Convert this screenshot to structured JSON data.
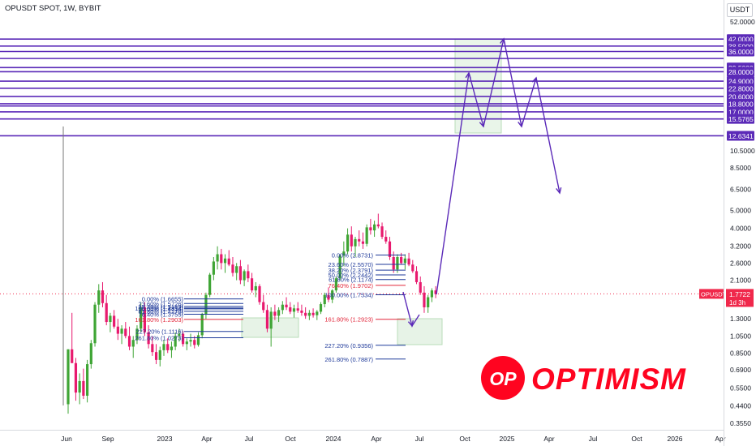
{
  "header": {
    "title": "OPUSDT SPOT, 1W, BYBIT",
    "currency": "USDT"
  },
  "colors": {
    "bull": "#3fa535",
    "bear": "#e8196e",
    "levels": "#5b2ab8",
    "fib_zone1": "#1f3a9a",
    "fib_red": "#e2263a",
    "target_box": "#cfe8cf",
    "price_tag": "#f0284b",
    "brand_red": "#ff0420"
  },
  "price_tag": {
    "symbol": "OPUSDT",
    "price": "1.7722",
    "countdown": "1d 3h"
  },
  "logo": {
    "badge": "OP",
    "wordmark": "OPTIMISM"
  },
  "chart_data": {
    "type": "candlestick",
    "y_scale": "log",
    "x_ticks": [
      "Jun",
      "Sep",
      "2023",
      "Apr",
      "Jul",
      "Oct",
      "2024",
      "Apr",
      "Jul",
      "Oct",
      "2025",
      "Apr",
      "Jul",
      "Oct",
      "2026",
      "Apr"
    ],
    "y_ticks": [
      "52.0000",
      "15.5765",
      "12.6341",
      "10.5000",
      "8.5000",
      "6.5000",
      "5.0000",
      "4.0000",
      "3.2000",
      "2.6000",
      "2.1000",
      "1.6000",
      "1.3000",
      "1.0500",
      "0.8500",
      "0.6900",
      "0.5500",
      "0.4400",
      "0.3550"
    ],
    "horizontal_levels": [
      "42.0000",
      "38.5000",
      "36.0000",
      "33.0000",
      "29.5000",
      "28.0000",
      "24.9000",
      "22.8000",
      "20.6000",
      "18.8000",
      "18.3000",
      "17.0000",
      "15.5765",
      "12.6341"
    ],
    "level_labels_visible": [
      "42.0000",
      "38.5000",
      "36.0000",
      "29.5000",
      "28.0000",
      "24.9000",
      "22.8000",
      "20.6000",
      "18.8000",
      "17.0000",
      "15.5765",
      "12.6341"
    ],
    "fib_left": [
      {
        "label": "0.00% (1.6655)",
        "value": 1.6655
      },
      {
        "label": "23.60% (1.5726)",
        "value": 1.5726
      },
      {
        "label": "38.20% (1.5159)",
        "value": 1.5159
      },
      {
        "label": "50.00% (1.4716)",
        "value": 1.4716
      },
      {
        "label": "61.80% (1.4276)",
        "value": 1.4276
      },
      {
        "label": "76.40% (1.3755)",
        "value": 1.3755
      },
      {
        "label": "100.00% (1.4854)",
        "value": 1.4854
      },
      {
        "label": "161.80% (1.2903)",
        "value": 1.2903
      },
      {
        "label": "227.20% (1.1116)",
        "value": 1.1116
      },
      {
        "label": "261.80% (1.0273)",
        "value": 1.0273
      }
    ],
    "fib_right": [
      {
        "label": "0.00% (2.8731)",
        "value": 2.8731
      },
      {
        "label": "23.60% (2.5570)",
        "value": 2.557
      },
      {
        "label": "38.20% (2.3791)",
        "value": 2.3791
      },
      {
        "label": "50.00% (2.2442)",
        "value": 2.2442
      },
      {
        "label": "61.80% (2.1174)",
        "value": 2.1174
      },
      {
        "label": "76.40% (1.9702)",
        "value": 1.9702
      },
      {
        "label": "100.00% (1.7534)",
        "value": 1.7534
      },
      {
        "label": "161.80% (1.2923)",
        "value": 1.2923
      },
      {
        "label": "227.20% (0.9356)",
        "value": 0.9356
      },
      {
        "label": "261.80% (0.7887)",
        "value": 0.7887
      }
    ],
    "last_price": 1.7722,
    "candles": [
      [
        0.45,
        0.89,
        0.4,
        0.89
      ],
      [
        0.89,
        1.4,
        0.75,
        0.75
      ],
      [
        0.75,
        0.8,
        0.47,
        0.52
      ],
      [
        0.52,
        0.66,
        0.45,
        0.6
      ],
      [
        0.6,
        0.7,
        0.48,
        0.5
      ],
      [
        0.5,
        0.78,
        0.46,
        0.74
      ],
      [
        0.74,
        1.0,
        0.7,
        0.96
      ],
      [
        0.96,
        1.6,
        0.92,
        1.55
      ],
      [
        1.55,
        2.0,
        1.4,
        1.85
      ],
      [
        1.85,
        2.05,
        1.5,
        1.58
      ],
      [
        1.58,
        1.75,
        1.2,
        1.25
      ],
      [
        1.25,
        1.4,
        1.1,
        1.35
      ],
      [
        1.35,
        1.45,
        1.15,
        1.18
      ],
      [
        1.18,
        1.3,
        1.0,
        1.08
      ],
      [
        1.08,
        1.2,
        0.95,
        1.15
      ],
      [
        1.15,
        1.25,
        1.02,
        1.05
      ],
      [
        1.05,
        1.18,
        0.88,
        0.92
      ],
      [
        0.92,
        1.05,
        0.8,
        1.0
      ],
      [
        1.0,
        1.2,
        0.95,
        1.15
      ],
      [
        1.15,
        1.6,
        1.1,
        1.5
      ],
      [
        1.5,
        1.6,
        1.05,
        1.1
      ],
      [
        1.1,
        1.2,
        0.9,
        0.95
      ],
      [
        0.95,
        1.05,
        0.82,
        0.86
      ],
      [
        0.86,
        0.95,
        0.74,
        0.78
      ],
      [
        0.78,
        0.92,
        0.72,
        0.88
      ],
      [
        0.88,
        1.0,
        0.82,
        0.95
      ],
      [
        0.95,
        1.02,
        0.85,
        0.88
      ],
      [
        0.88,
        0.98,
        0.8,
        0.92
      ],
      [
        0.92,
        1.1,
        0.88,
        1.05
      ],
      [
        1.05,
        1.15,
        0.98,
        1.08
      ],
      [
        1.08,
        1.12,
        0.92,
        0.95
      ],
      [
        0.95,
        1.02,
        0.88,
        0.98
      ],
      [
        0.98,
        1.08,
        0.92,
        1.0
      ],
      [
        1.0,
        1.05,
        0.9,
        0.94
      ],
      [
        0.94,
        1.1,
        0.92,
        1.06
      ],
      [
        1.06,
        1.4,
        1.02,
        1.38
      ],
      [
        1.38,
        1.8,
        1.3,
        1.75
      ],
      [
        1.75,
        2.3,
        1.7,
        2.25
      ],
      [
        2.25,
        2.8,
        2.1,
        2.65
      ],
      [
        2.65,
        3.2,
        2.4,
        2.9
      ],
      [
        2.9,
        3.1,
        2.4,
        2.6
      ],
      [
        2.6,
        2.9,
        2.3,
        2.75
      ],
      [
        2.75,
        3.05,
        2.5,
        2.55
      ],
      [
        2.55,
        2.8,
        2.2,
        2.3
      ],
      [
        2.3,
        2.6,
        2.1,
        2.5
      ],
      [
        2.5,
        2.7,
        2.0,
        2.1
      ],
      [
        2.1,
        2.4,
        1.95,
        2.35
      ],
      [
        2.35,
        2.55,
        2.05,
        2.15
      ],
      [
        2.15,
        2.3,
        1.8,
        1.85
      ],
      [
        1.85,
        2.05,
        1.7,
        1.95
      ],
      [
        1.95,
        2.0,
        1.55,
        1.6
      ],
      [
        1.6,
        1.75,
        1.4,
        1.45
      ],
      [
        1.45,
        1.55,
        1.1,
        1.15
      ],
      [
        1.15,
        1.5,
        0.92,
        1.42
      ],
      [
        1.42,
        1.55,
        1.28,
        1.35
      ],
      [
        1.35,
        1.5,
        1.25,
        1.45
      ],
      [
        1.45,
        1.62,
        1.38,
        1.55
      ],
      [
        1.55,
        1.7,
        1.45,
        1.5
      ],
      [
        1.5,
        1.6,
        1.38,
        1.42
      ],
      [
        1.42,
        1.55,
        1.32,
        1.48
      ],
      [
        1.48,
        1.6,
        1.4,
        1.44
      ],
      [
        1.44,
        1.55,
        1.35,
        1.4
      ],
      [
        1.4,
        1.5,
        1.3,
        1.35
      ],
      [
        1.35,
        1.45,
        1.28,
        1.4
      ],
      [
        1.4,
        1.48,
        1.32,
        1.36
      ],
      [
        1.36,
        1.45,
        1.28,
        1.42
      ],
      [
        1.42,
        1.6,
        1.38,
        1.56
      ],
      [
        1.56,
        1.8,
        1.5,
        1.75
      ],
      [
        1.75,
        1.92,
        1.6,
        1.65
      ],
      [
        1.65,
        1.88,
        1.58,
        1.85
      ],
      [
        1.85,
        2.2,
        1.8,
        2.15
      ],
      [
        2.15,
        2.9,
        2.1,
        2.85
      ],
      [
        2.85,
        3.4,
        2.5,
        3.0
      ],
      [
        3.0,
        4.0,
        2.9,
        3.7
      ],
      [
        3.7,
        4.1,
        3.0,
        3.2
      ],
      [
        3.2,
        3.6,
        2.8,
        3.5
      ],
      [
        3.5,
        3.9,
        3.2,
        3.4
      ],
      [
        3.4,
        3.8,
        3.1,
        3.3
      ],
      [
        3.3,
        4.2,
        3.2,
        4.05
      ],
      [
        4.05,
        4.5,
        3.7,
        3.9
      ],
      [
        3.9,
        4.4,
        3.6,
        4.2
      ],
      [
        4.2,
        4.8,
        4.0,
        4.1
      ],
      [
        4.1,
        4.3,
        3.5,
        3.6
      ],
      [
        3.6,
        3.9,
        3.3,
        3.4
      ],
      [
        3.4,
        3.6,
        2.7,
        2.8
      ],
      [
        2.8,
        3.0,
        2.3,
        2.4
      ],
      [
        2.4,
        2.9,
        2.3,
        2.8
      ],
      [
        2.8,
        2.95,
        2.55,
        2.6
      ],
      [
        2.6,
        2.9,
        2.4,
        2.75
      ],
      [
        2.75,
        2.95,
        2.5,
        2.55
      ],
      [
        2.55,
        2.7,
        2.3,
        2.35
      ],
      [
        2.35,
        2.5,
        2.0,
        2.05
      ],
      [
        2.05,
        2.2,
        1.75,
        1.8
      ],
      [
        1.8,
        1.95,
        1.4,
        1.5
      ],
      [
        1.5,
        1.75,
        1.4,
        1.7
      ],
      [
        1.7,
        1.9,
        1.6,
        1.85
      ],
      [
        1.85,
        1.95,
        1.68,
        1.77
      ]
    ]
  }
}
